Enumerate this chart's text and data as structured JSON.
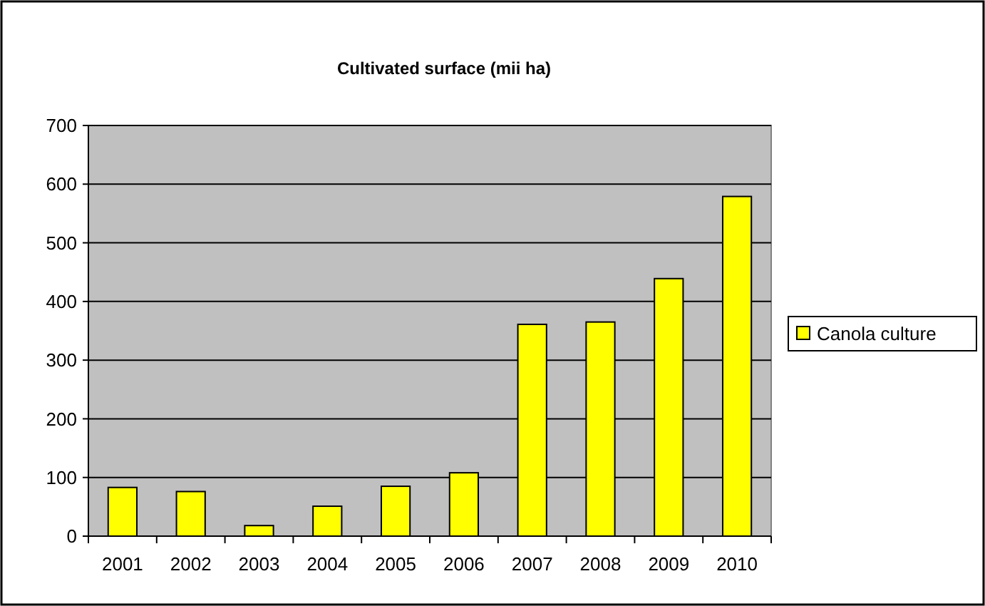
{
  "chart_data": {
    "type": "bar",
    "title": "Cultivated surface (mii ha)",
    "categories": [
      "2001",
      "2002",
      "2003",
      "2004",
      "2005",
      "2006",
      "2007",
      "2008",
      "2009",
      "2010"
    ],
    "series": [
      {
        "name": "Canola culture",
        "color": "#ffff00",
        "values": [
          83,
          76,
          18,
          51,
          85,
          108,
          361,
          365,
          439,
          579
        ]
      }
    ],
    "ylim": [
      0,
      700
    ],
    "yticks": [
      0,
      100,
      200,
      300,
      400,
      500,
      600,
      700
    ],
    "grid": "y",
    "legend": "right"
  }
}
